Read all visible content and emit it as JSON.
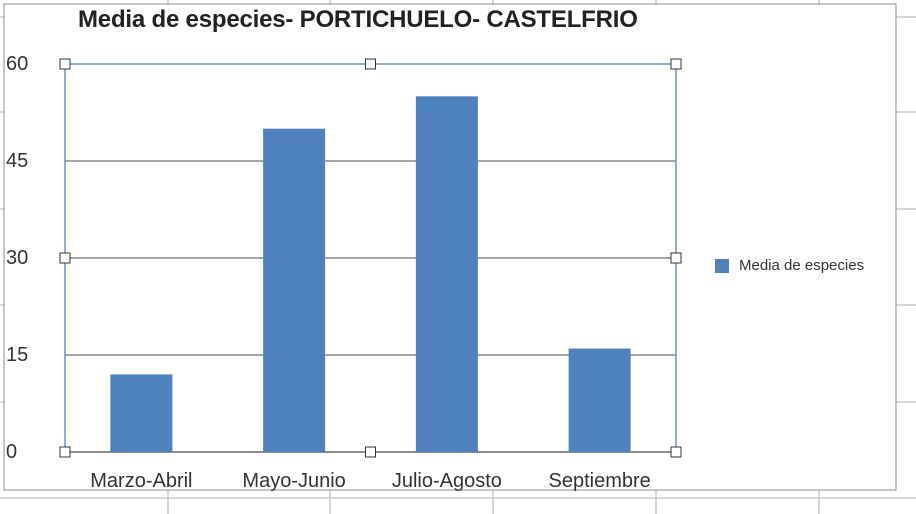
{
  "chart_data": {
    "type": "bar",
    "title": "Media de especies- PORTICHUELO- CASTELFRIO",
    "categories": [
      "Marzo-Abril",
      "Mayo-Junio",
      "Julio-Agosto",
      "Septiembre"
    ],
    "series": [
      {
        "name": "Media de especies",
        "values": [
          12,
          50,
          55,
          16
        ],
        "color": "#4f81bd"
      }
    ],
    "yticks": [
      "0",
      "15",
      "30",
      "45",
      "60"
    ],
    "ylim": [
      0,
      60
    ],
    "grid": true,
    "legend_position": "right"
  }
}
